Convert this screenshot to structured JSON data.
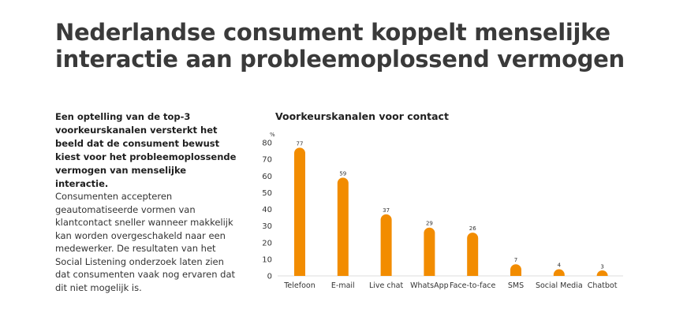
{
  "headline": {
    "line1": "Nederlandse consument koppelt menselijke",
    "line2": "interactie aan probleemoplossend vermogen"
  },
  "intro_text": "Een optelling van de top-3 voorkeurskanalen versterkt het beeld dat de consument bewust kiest voor het probleemoplossende vermogen van menselijke interactie.",
  "body_text": "Consumenten accepteren geautomatiseerde vormen van klantcontact sneller wanneer makkelijk kan worden overgeschakeld naar een medewerker. De resultaten van het Social Listening onderzoek laten zien dat consumenten vaak nog ervaren dat dit niet mogelijk is.",
  "colors": {
    "bar": "#F28C00",
    "axis": "#bbbbbb",
    "text": "#333333"
  },
  "chart_data": {
    "type": "bar",
    "title": "Voorkeurskanalen voor contact",
    "ylabel": "%",
    "xlabel": "",
    "ylim": [
      0,
      80
    ],
    "yticks": [
      0,
      10,
      20,
      30,
      40,
      50,
      60,
      70,
      80
    ],
    "grid": false,
    "categories": [
      "Telefoon",
      "E-mail",
      "Live chat",
      "WhatsApp",
      "Face-to-face",
      "SMS",
      "Social Media",
      "Chatbot"
    ],
    "values": [
      77,
      59,
      37,
      29,
      26,
      7,
      4,
      3
    ],
    "data_labels": [
      "77",
      "59",
      "37",
      "29",
      "26",
      "7",
      "4",
      "3"
    ]
  }
}
